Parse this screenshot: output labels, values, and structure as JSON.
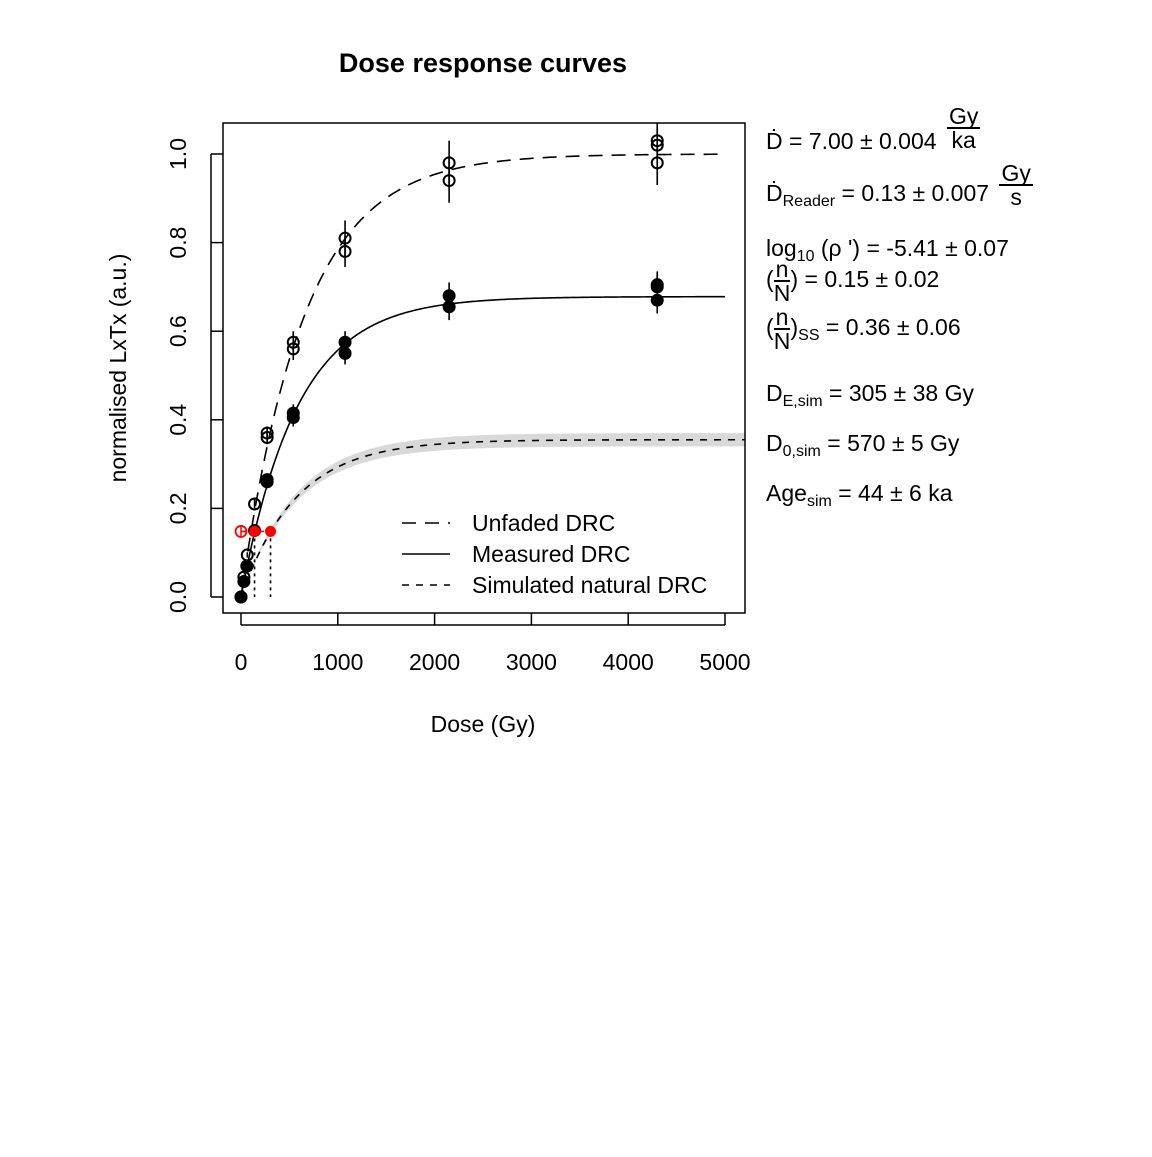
{
  "chart_data": {
    "type": "scatter",
    "title": "Dose response curves",
    "xlabel": "Dose (Gy)",
    "ylabel": "normalised LxTx (a.u.)",
    "xlim": [
      -200,
      5200
    ],
    "ylim": [
      -0.035,
      1.07
    ],
    "xticks": [
      "0",
      "1000",
      "2000",
      "3000",
      "4000",
      "5000"
    ],
    "xtick_values": [
      0,
      1000,
      2000,
      3000,
      4000,
      5000
    ],
    "yticks": [
      "0.0",
      "0.2",
      "0.4",
      "0.6",
      "0.8",
      "1.0"
    ],
    "ytick_values": [
      0,
      0.2,
      0.4,
      0.6,
      0.8,
      1.0
    ],
    "series": [
      {
        "name": "Unfaded DRC",
        "marker": "open-circle",
        "line": "long-dash",
        "fit": {
          "max": 1.0,
          "D0": 650
        },
        "points": [
          [
            0,
            0,
            0
          ],
          [
            30,
            0.045,
            0.005
          ],
          [
            65,
            0.095,
            0.006
          ],
          [
            140,
            0.21,
            0.01
          ],
          [
            270,
            0.36,
            0.015
          ],
          [
            270,
            0.37,
            0.015
          ],
          [
            540,
            0.56,
            0.025
          ],
          [
            540,
            0.575,
            0.025
          ],
          [
            1075,
            0.78,
            0.035
          ],
          [
            1075,
            0.81,
            0.04
          ],
          [
            2150,
            0.94,
            0.05
          ],
          [
            2150,
            0.98,
            0.05
          ],
          [
            4300,
            0.98,
            0.05
          ],
          [
            4300,
            1.02,
            0.04
          ],
          [
            4300,
            1.03,
            0.04
          ]
        ]
      },
      {
        "name": "Measured DRC",
        "marker": "filled-circle",
        "line": "solid",
        "fit": {
          "max": 0.678,
          "D0": 580
        },
        "points": [
          [
            0,
            0,
            0
          ],
          [
            30,
            0.035,
            0.004
          ],
          [
            60,
            0.07,
            0.005
          ],
          [
            140,
            0.15,
            0.008
          ],
          [
            270,
            0.26,
            0.012
          ],
          [
            270,
            0.265,
            0.012
          ],
          [
            540,
            0.405,
            0.02
          ],
          [
            540,
            0.415,
            0.02
          ],
          [
            1075,
            0.55,
            0.025
          ],
          [
            1075,
            0.575,
            0.025
          ],
          [
            2150,
            0.655,
            0.03
          ],
          [
            2150,
            0.68,
            0.03
          ],
          [
            4300,
            0.67,
            0.03
          ],
          [
            4300,
            0.7,
            0.03
          ],
          [
            4300,
            0.705,
            0.03
          ]
        ]
      },
      {
        "name": "Simulated natural DRC",
        "marker": "none",
        "line": "short-dash",
        "fit": {
          "max": 0.355,
          "D0": 570,
          "band": 0.015
        }
      }
    ],
    "natural_signal": {
      "LxTx": 0.148,
      "open_point_dose": 0,
      "measured_de": 140,
      "simulated_de": 305,
      "color": "#ff0000"
    },
    "legend": {
      "position": "bottom-right",
      "entries": [
        "Unfaded DRC",
        "Measured DRC",
        "Simulated natural DRC"
      ]
    }
  },
  "annotations": {
    "dose_rate": {
      "symbol": "Ḋ",
      "value": "= 7.00 ± 0.004",
      "unit_num": "Gy",
      "unit_den": "ka"
    },
    "reader_rate": {
      "symbol": "Ḋ",
      "sub": "Reader",
      "value": "= 0.13 ± 0.007",
      "unit_num": "Gy",
      "unit_den": "s"
    },
    "rho": {
      "prefix": "log",
      "sub": "10",
      "value": "(ρ ') = -5.41 ± 0.07"
    },
    "nN": {
      "num": "n",
      "den": "N",
      "value": "= 0.15 ± 0.02"
    },
    "nN_ss": {
      "num": "n",
      "den": "N",
      "sub": "SS",
      "value": "= 0.36 ± 0.06"
    },
    "de_sim": {
      "symbol": "D",
      "sub": "E,sim",
      "value": "= 305 ± 38 Gy"
    },
    "d0_sim": {
      "symbol": "D",
      "sub": "0,sim",
      "value": "= 570 ± 5 Gy"
    },
    "age_sim": {
      "symbol": "Age",
      "sub": "sim",
      "value": "= 44 ± 6 ka"
    }
  }
}
